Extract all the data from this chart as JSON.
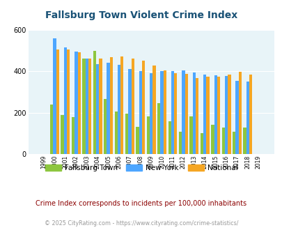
{
  "title": "Fallsburg Town Violent Crime Index",
  "years": [
    1999,
    2000,
    2001,
    2002,
    2003,
    2004,
    2005,
    2006,
    2007,
    2008,
    2009,
    2010,
    2011,
    2012,
    2013,
    2014,
    2015,
    2016,
    2017,
    2018,
    2019
  ],
  "fallsburg": [
    0,
    240,
    190,
    178,
    460,
    500,
    265,
    205,
    195,
    132,
    182,
    245,
    160,
    108,
    183,
    100,
    143,
    128,
    108,
    128,
    0
  ],
  "new_york": [
    0,
    558,
    515,
    495,
    460,
    435,
    440,
    432,
    410,
    400,
    390,
    400,
    400,
    405,
    395,
    385,
    380,
    378,
    355,
    350,
    0
  ],
  "national": [
    0,
    505,
    505,
    492,
    462,
    460,
    468,
    472,
    463,
    452,
    428,
    403,
    392,
    388,
    366,
    374,
    374,
    383,
    398,
    383,
    0
  ],
  "color_fallsburg": "#8dc63f",
  "color_newyork": "#4da6ff",
  "color_national": "#f5a623",
  "bg_color": "#e8f4f8",
  "ylim": [
    0,
    600
  ],
  "yticks": [
    0,
    200,
    400,
    600
  ],
  "subtitle": "Crime Index corresponds to incidents per 100,000 inhabitants",
  "footer": "© 2025 CityRating.com - https://www.cityrating.com/crime-statistics/",
  "title_color": "#1a5276",
  "subtitle_color": "#8b0000",
  "footer_color": "#999999",
  "legend_labels": [
    "Fallsburg Town",
    "New York",
    "National"
  ]
}
